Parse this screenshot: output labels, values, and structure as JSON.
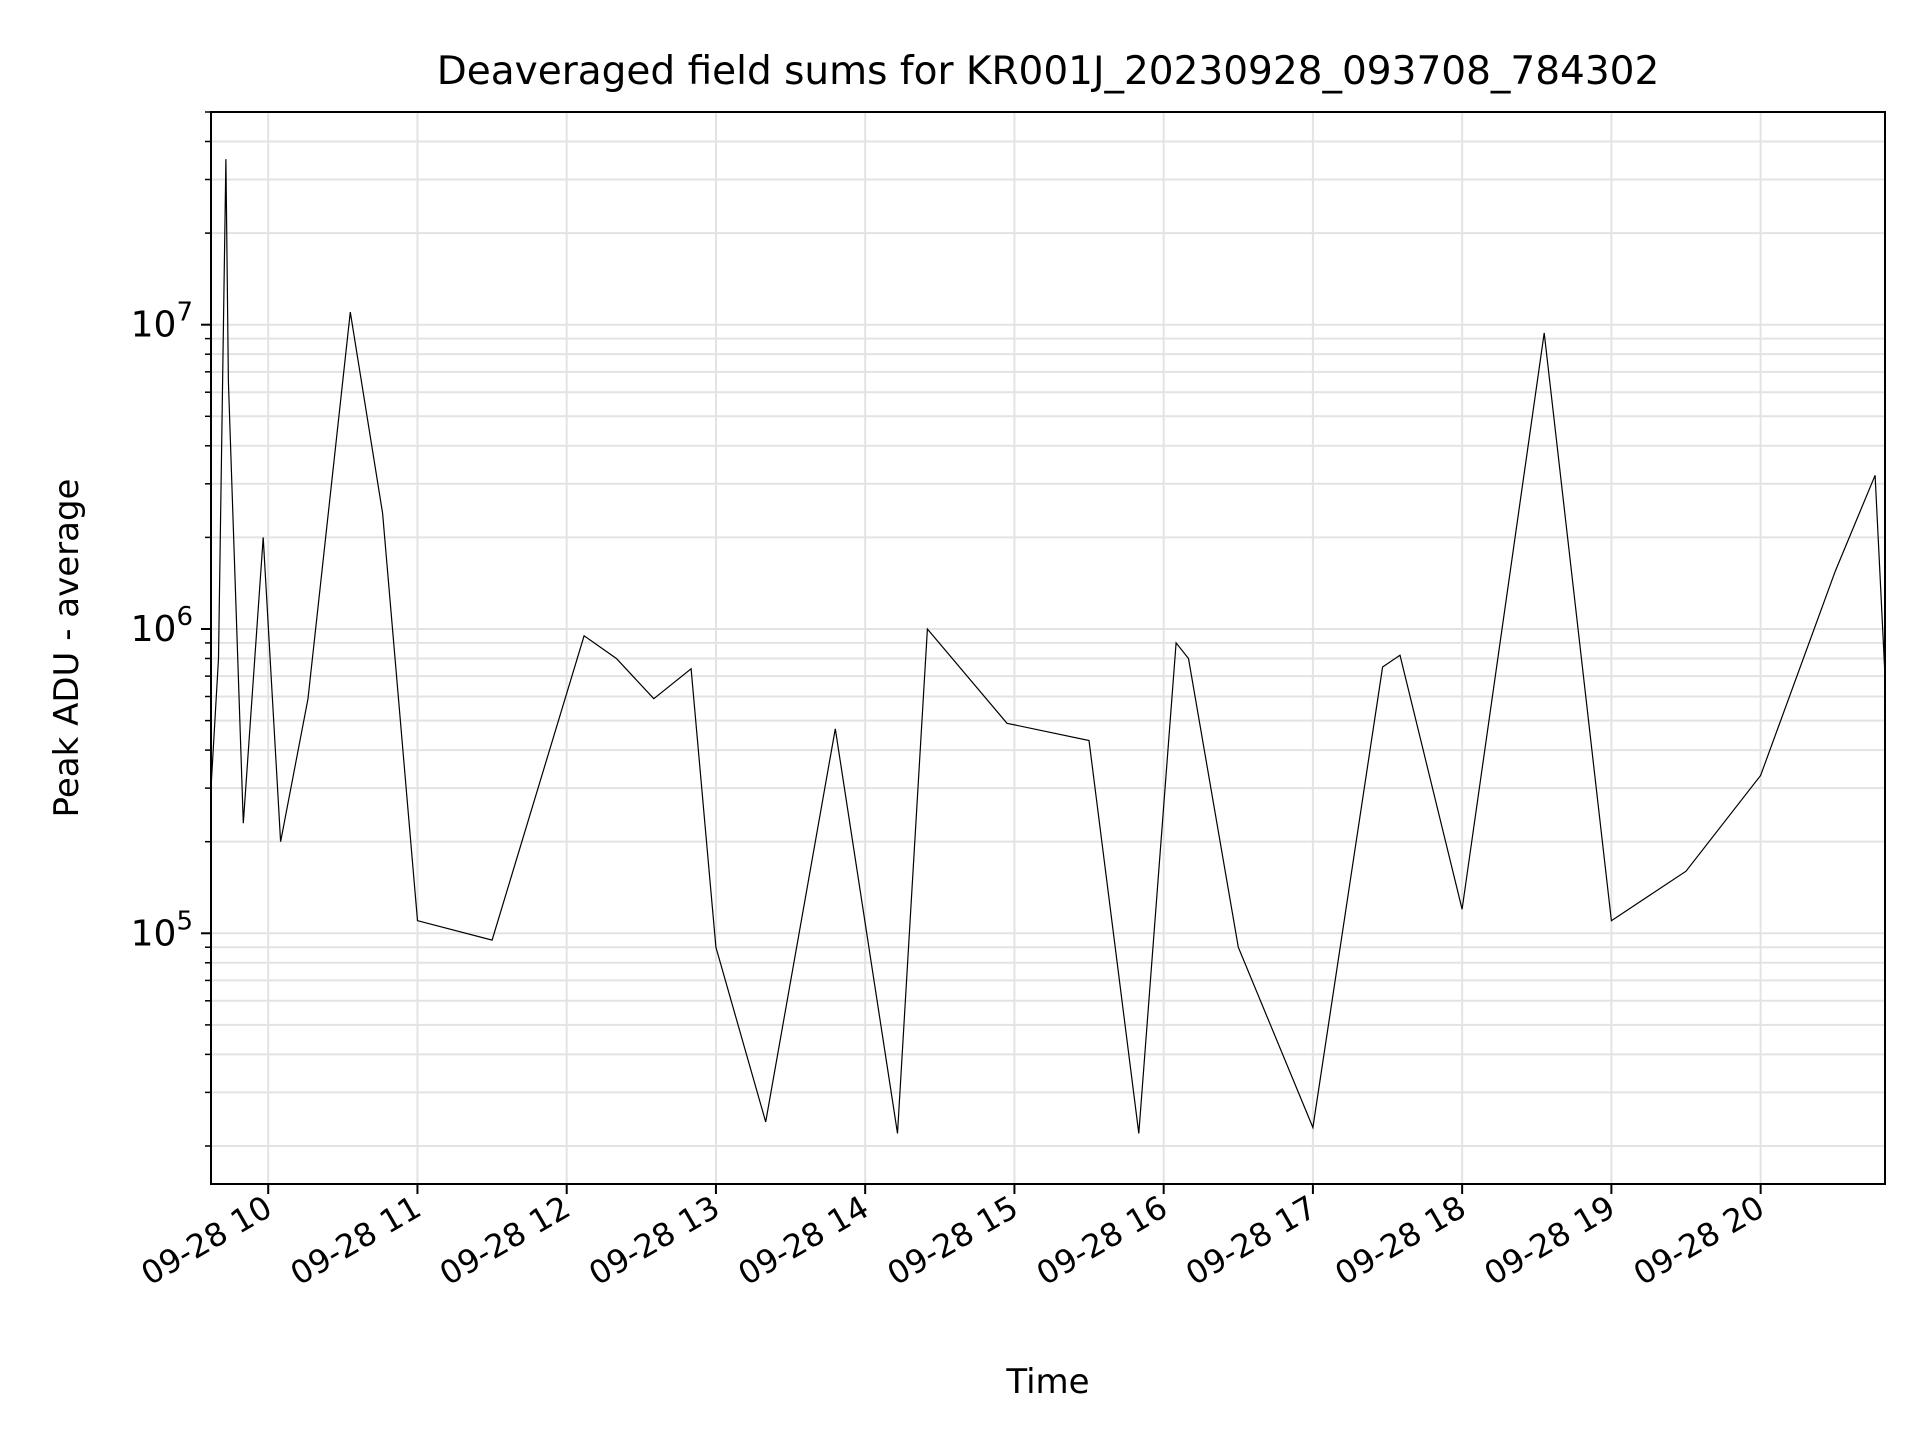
{
  "chart_data": {
    "type": "line",
    "title": "Deaveraged field sums for KR001J_20230928_093708_784302",
    "xlabel": "Time",
    "ylabel": "Peak ADU - average",
    "x_axis": {
      "scale": "time",
      "range": [
        "2023-09-28 09:37",
        "2023-09-28 20:50"
      ],
      "ticks": [
        "2023-09-28 10:00",
        "2023-09-28 11:00",
        "2023-09-28 12:00",
        "2023-09-28 13:00",
        "2023-09-28 14:00",
        "2023-09-28 15:00",
        "2023-09-28 16:00",
        "2023-09-28 17:00",
        "2023-09-28 18:00",
        "2023-09-28 19:00",
        "2023-09-28 20:00"
      ],
      "tick_labels": [
        "09-28 10",
        "09-28 11",
        "09-28 12",
        "09-28 13",
        "09-28 14",
        "09-28 15",
        "09-28 16",
        "09-28 17",
        "09-28 18",
        "09-28 19",
        "09-28 20"
      ]
    },
    "y_axis": {
      "scale": "log",
      "range": [
        15000,
        50000000
      ],
      "major_ticks": [
        100000,
        1000000,
        10000000
      ],
      "tick_label_base": "10",
      "tick_label_exponents": [
        "5",
        "6",
        "7"
      ]
    },
    "grid": true,
    "line_color": "#000000",
    "series": [
      {
        "values": [
          [
            "2023-09-28 09:37",
            300000
          ],
          [
            "2023-09-28 09:40",
            800000
          ],
          [
            "2023-09-28 09:43",
            35000000
          ],
          [
            "2023-09-28 09:44",
            6500000
          ],
          [
            "2023-09-28 09:50",
            230000
          ],
          [
            "2023-09-28 09:58",
            2000000
          ],
          [
            "2023-09-28 10:05",
            200000
          ],
          [
            "2023-09-28 10:16",
            590000
          ],
          [
            "2023-09-28 10:33",
            11000000
          ],
          [
            "2023-09-28 10:46",
            2400000
          ],
          [
            "2023-09-28 11:00",
            110000
          ],
          [
            "2023-09-28 11:30",
            95000
          ],
          [
            "2023-09-28 12:07",
            950000
          ],
          [
            "2023-09-28 12:20",
            800000
          ],
          [
            "2023-09-28 12:35",
            590000
          ],
          [
            "2023-09-28 12:50",
            740000
          ],
          [
            "2023-09-28 13:00",
            90000
          ],
          [
            "2023-09-28 13:20",
            24000
          ],
          [
            "2023-09-28 13:48",
            470000
          ],
          [
            "2023-09-28 14:13",
            22000
          ],
          [
            "2023-09-28 14:25",
            1000000
          ],
          [
            "2023-09-28 14:57",
            490000
          ],
          [
            "2023-09-28 15:30",
            430000
          ],
          [
            "2023-09-28 15:50",
            22000
          ],
          [
            "2023-09-28 16:05",
            900000
          ],
          [
            "2023-09-28 16:10",
            800000
          ],
          [
            "2023-09-28 16:30",
            90000
          ],
          [
            "2023-09-28 17:00",
            23000
          ],
          [
            "2023-09-28 17:28",
            750000
          ],
          [
            "2023-09-28 17:35",
            820000
          ],
          [
            "2023-09-28 18:00",
            120000
          ],
          [
            "2023-09-28 18:33",
            9400000
          ],
          [
            "2023-09-28 19:00",
            110000
          ],
          [
            "2023-09-28 19:30",
            160000
          ],
          [
            "2023-09-28 20:00",
            330000
          ],
          [
            "2023-09-28 20:30",
            1550000
          ],
          [
            "2023-09-28 20:46",
            3200000
          ],
          [
            "2023-09-28 20:50",
            700000
          ]
        ]
      }
    ]
  }
}
